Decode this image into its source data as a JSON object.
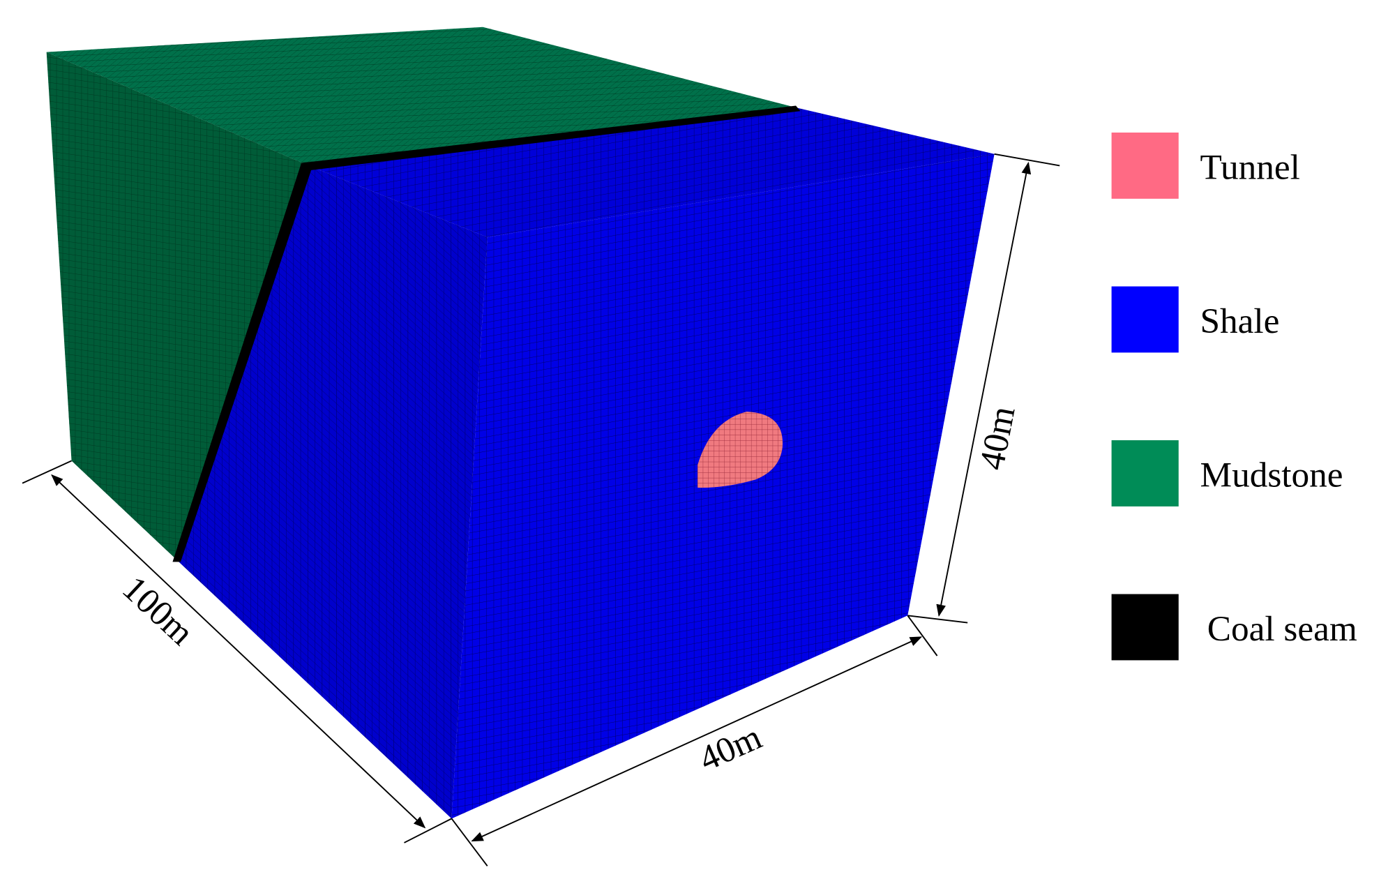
{
  "legend": [
    {
      "label": "Tunnel",
      "color": "#ff6a84"
    },
    {
      "label": "Shale",
      "color": "#0000ff"
    },
    {
      "label": "Mudstone",
      "color": "#008c57"
    },
    {
      "label": "Coal seam",
      "color": "#000000"
    }
  ],
  "dimensions": {
    "length": "100m",
    "width": "40m",
    "height": "40m"
  }
}
